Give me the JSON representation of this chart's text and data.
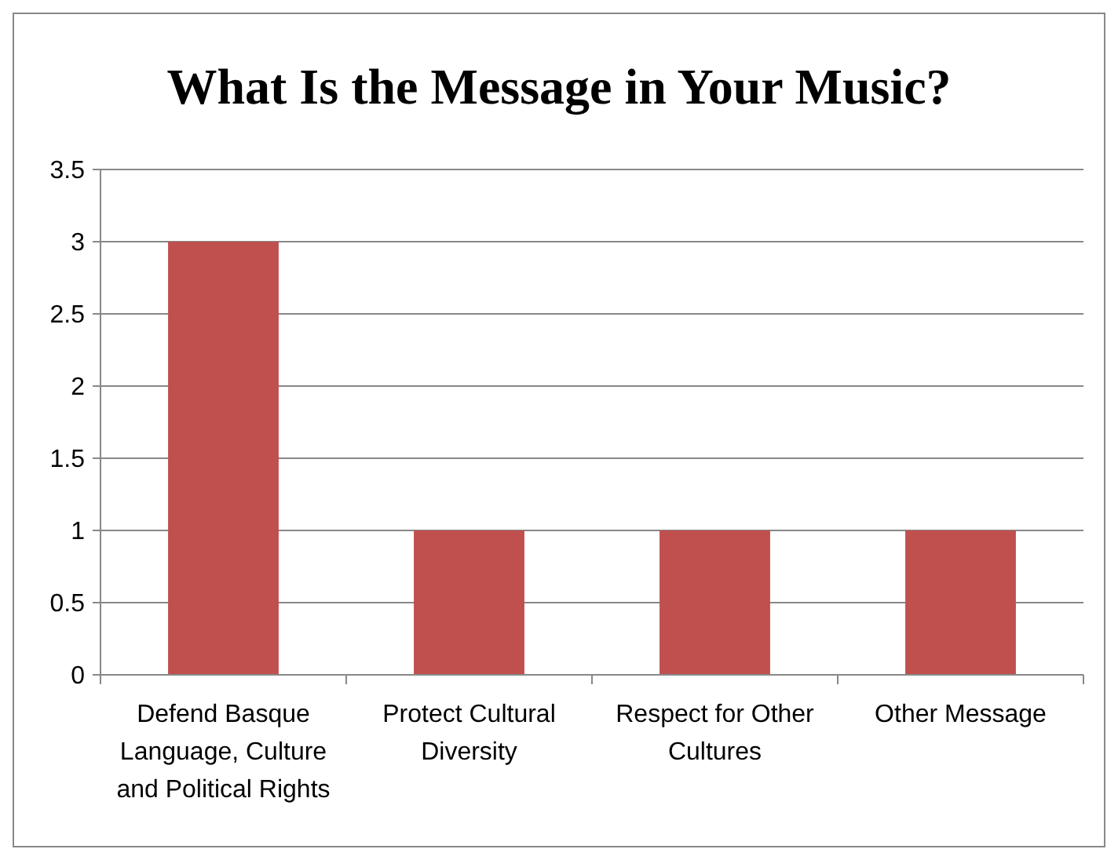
{
  "chart_data": {
    "type": "bar",
    "title": "What Is the Message in Your Music?",
    "categories": [
      "Defend Basque Language, Culture and Political Rights",
      "Protect Cultural Diversity",
      "Respect for Other Cultures",
      "Other Message"
    ],
    "values": [
      3,
      1,
      1,
      1
    ],
    "color": "#c0504d",
    "ylim": [
      0,
      3.5
    ],
    "yticks": [
      0,
      0.5,
      1,
      1.5,
      2,
      2.5,
      3,
      3.5
    ],
    "grid": "y"
  }
}
